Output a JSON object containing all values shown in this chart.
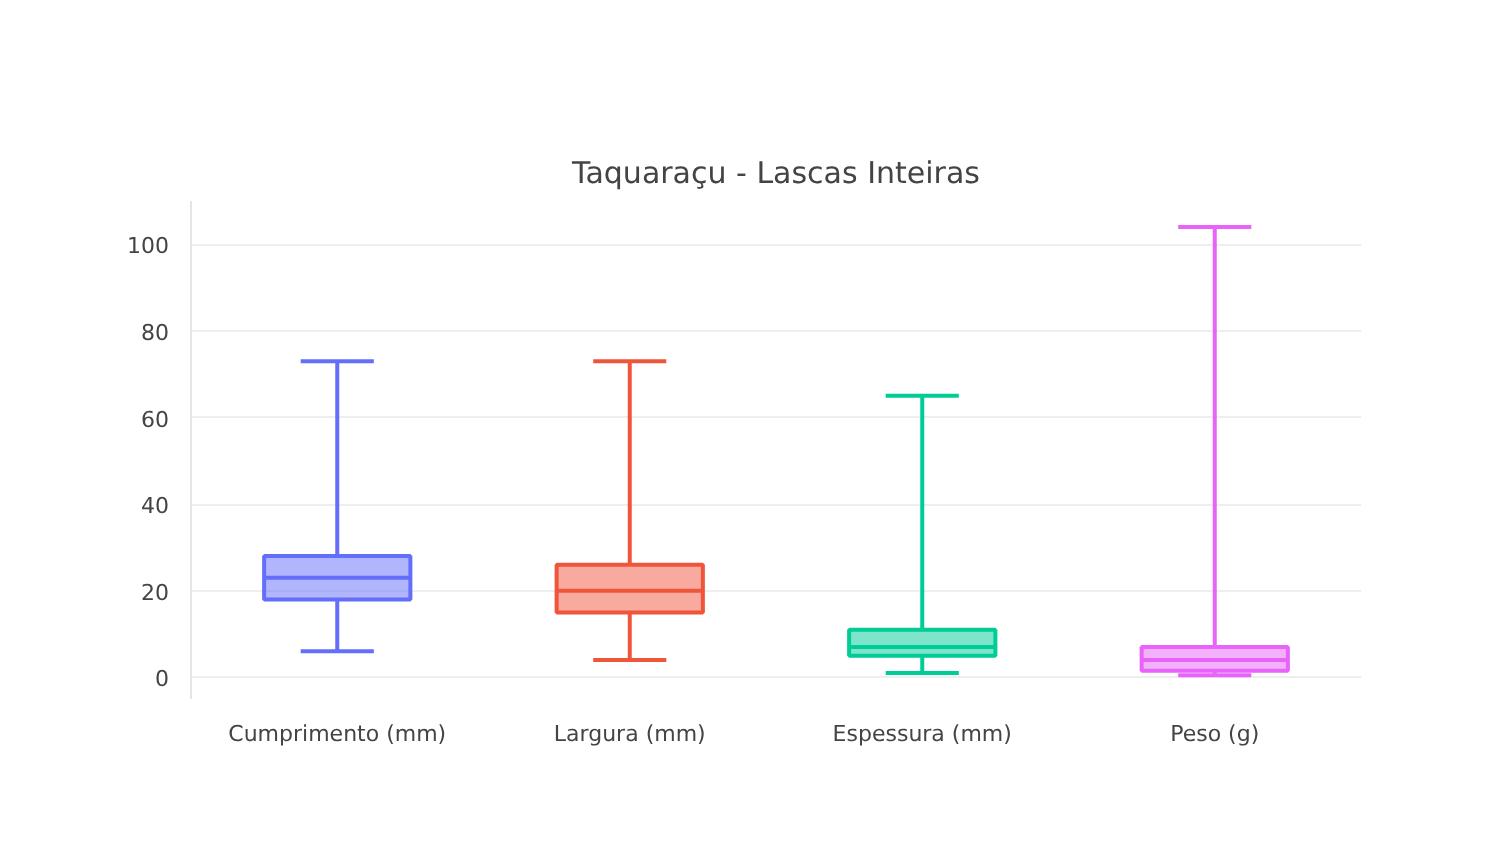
{
  "chart_data": {
    "type": "box",
    "title": "Taquaraçu - Lascas Inteiras",
    "categories": [
      "Cumprimento (mm)",
      "Largura (mm)",
      "Espessura (mm)",
      "Peso (g)"
    ],
    "colors": [
      "#636efa",
      "#ef553b",
      "#00cc96",
      "#e763fa"
    ],
    "boxes": [
      {
        "low": 6,
        "q1": 18,
        "median": 23,
        "q3": 28,
        "high": 73
      },
      {
        "low": 4,
        "q1": 15,
        "median": 20,
        "q3": 26,
        "high": 73
      },
      {
        "low": 1,
        "q1": 5,
        "median": 7,
        "q3": 11,
        "high": 65
      },
      {
        "low": 0.5,
        "q1": 1.5,
        "median": 4,
        "q3": 7,
        "high": 104
      }
    ],
    "ylim": [
      -5,
      110
    ],
    "yticks": [
      0,
      20,
      40,
      60,
      80,
      100
    ],
    "grid": "y"
  }
}
